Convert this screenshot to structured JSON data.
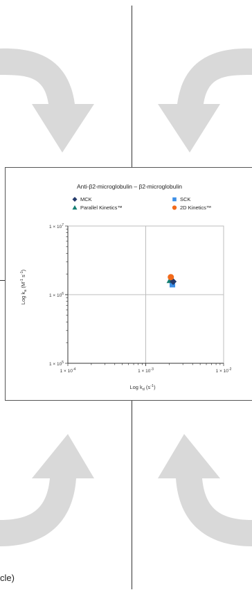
{
  "page_text": {
    "cropped_caption": "cle)"
  },
  "colors": {
    "arrow": "#d9d9d9",
    "grid": "#bdbdbd",
    "frame": "#555555"
  },
  "chart_data": {
    "type": "scatter",
    "title": "Anti-β2-microglobulin – β2-microglobulin",
    "x_axis": {
      "label_main": "Log k",
      "label_sub": "d",
      "label_unit": " (s",
      "label_exp": "-1",
      "label_close": ")",
      "scale": "log",
      "range": [
        0.0001,
        0.01
      ],
      "ticks": [
        {
          "value": 0.0001,
          "base": "1 × 10",
          "exp": "-4"
        },
        {
          "value": 0.001,
          "base": "1 × 10",
          "exp": "-3"
        },
        {
          "value": 0.01,
          "base": "1 × 10",
          "exp": "-2"
        }
      ]
    },
    "y_axis": {
      "label_main": "Log k",
      "label_sub": "a",
      "label_unit": " (M",
      "label_exp1": "-1",
      "label_mid": " s",
      "label_exp2": "-1",
      "label_close": ")",
      "scale": "log",
      "range": [
        100000,
        10000000
      ],
      "ticks": [
        {
          "value": 100000,
          "base": "1 × 10",
          "exp": "5"
        },
        {
          "value": 1000000,
          "base": "1 × 10",
          "exp": "6"
        },
        {
          "value": 10000000,
          "base": "1 × 10",
          "exp": "7"
        }
      ]
    },
    "grid": true,
    "legend_position": "top",
    "series": [
      {
        "name": "MCK",
        "marker": "diamond",
        "color": "#243a6b",
        "x": 0.00225,
        "y": 1550000
      },
      {
        "name": "SCK",
        "marker": "square",
        "color": "#3d8fe6",
        "x": 0.0022,
        "y": 1400000
      },
      {
        "name": "Parallel Kinetics™",
        "marker": "triangle",
        "color": "#137e72",
        "x": 0.00205,
        "y": 1620000
      },
      {
        "name": "2D Kinetics™",
        "marker": "circle",
        "color": "#f26a1b",
        "x": 0.0021,
        "y": 1800000
      }
    ]
  }
}
